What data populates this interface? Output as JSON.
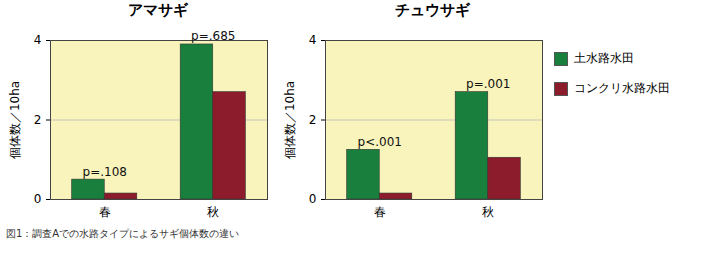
{
  "chart_data": [
    {
      "type": "bar",
      "title": "アマサギ",
      "ylabel": "個体数／10ha",
      "categories": [
        "春",
        "秋"
      ],
      "series": [
        {
          "name": "土水路水田",
          "color": "#18803c",
          "values": [
            0.5,
            3.9
          ]
        },
        {
          "name": "コンクリ水路水田",
          "color": "#8c1c2c",
          "values": [
            0.15,
            2.7
          ]
        }
      ],
      "annotations": [
        {
          "category": "春",
          "text": "p=.108"
        },
        {
          "category": "秋",
          "text": "p=.685"
        }
      ],
      "ylim": [
        0,
        4
      ],
      "yticks": [
        0,
        2,
        4
      ],
      "grid": true,
      "legend": "right"
    },
    {
      "type": "bar",
      "title": "チュウサギ",
      "ylabel": "個体数／10ha",
      "categories": [
        "春",
        "秋"
      ],
      "series": [
        {
          "name": "土水路水田",
          "color": "#18803c",
          "values": [
            1.25,
            2.7
          ]
        },
        {
          "name": "コンクリ水路水田",
          "color": "#8c1c2c",
          "values": [
            0.15,
            1.05
          ]
        }
      ],
      "annotations": [
        {
          "category": "春",
          "text": "p<.001"
        },
        {
          "category": "秋",
          "text": "p=.001"
        }
      ],
      "ylim": [
        0,
        4
      ],
      "yticks": [
        0,
        2,
        4
      ],
      "grid": true,
      "legend": "right"
    }
  ],
  "caption": "図1：調査Aでの水路タイプによるサギ個体数の違い"
}
